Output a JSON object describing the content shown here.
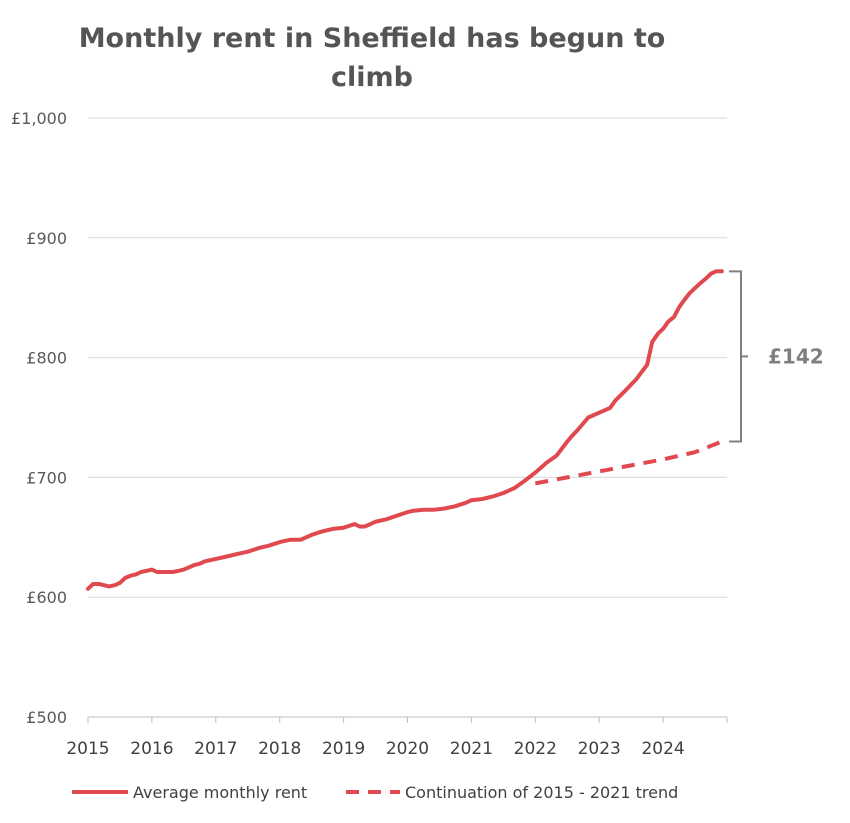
{
  "chart_data": {
    "type": "line",
    "title_lines": [
      "Monthly rent in Sheffield has begun to",
      "climb"
    ],
    "xlabel": "",
    "ylabel": "",
    "xlim": [
      2015,
      2025
    ],
    "ylim": [
      500,
      1000
    ],
    "y_ticks": [
      {
        "value": 500,
        "label": "£500"
      },
      {
        "value": 600,
        "label": "£600"
      },
      {
        "value": 700,
        "label": "£700"
      },
      {
        "value": 800,
        "label": "£800"
      },
      {
        "value": 900,
        "label": "£900"
      },
      {
        "value": 1000,
        "label": "£1,000"
      }
    ],
    "x_ticks": [
      {
        "value": 2015,
        "label": "2015"
      },
      {
        "value": 2016,
        "label": "2016"
      },
      {
        "value": 2017,
        "label": "2017"
      },
      {
        "value": 2018,
        "label": "2018"
      },
      {
        "value": 2019,
        "label": "2019"
      },
      {
        "value": 2020,
        "label": "2020"
      },
      {
        "value": 2021,
        "label": "2021"
      },
      {
        "value": 2022,
        "label": "2022"
      },
      {
        "value": 2023,
        "label": "2023"
      },
      {
        "value": 2024,
        "label": "2024"
      }
    ],
    "grid": true,
    "legend_position": "bottom",
    "colors": {
      "series": "#e04a4f",
      "grid": "#d9d9d9",
      "axis": "#bfbfbf",
      "annotation": "#7f7f7f"
    },
    "series": [
      {
        "name": "Average monthly rent",
        "style": "solid",
        "x": [
          2015.0,
          2015.08,
          2015.17,
          2015.25,
          2015.33,
          2015.42,
          2015.5,
          2015.58,
          2015.67,
          2015.75,
          2015.83,
          2015.92,
          2016.0,
          2016.08,
          2016.17,
          2016.25,
          2016.33,
          2016.42,
          2016.5,
          2016.58,
          2016.67,
          2016.75,
          2016.83,
          2016.92,
          2017.0,
          2017.17,
          2017.33,
          2017.5,
          2017.67,
          2017.83,
          2018.0,
          2018.17,
          2018.33,
          2018.5,
          2018.67,
          2018.83,
          2019.0,
          2019.17,
          2019.25,
          2019.33,
          2019.42,
          2019.5,
          2019.67,
          2019.83,
          2020.0,
          2020.08,
          2020.25,
          2020.42,
          2020.58,
          2020.75,
          2020.92,
          2021.0,
          2021.17,
          2021.33,
          2021.5,
          2021.67,
          2021.83,
          2022.0,
          2022.17,
          2022.33,
          2022.5,
          2022.58,
          2022.67,
          2022.83,
          2023.0,
          2023.17,
          2023.25,
          2023.42,
          2023.58,
          2023.75,
          2023.83,
          2023.92,
          2024.0,
          2024.08,
          2024.17,
          2024.25,
          2024.33,
          2024.42,
          2024.5,
          2024.58,
          2024.67,
          2024.75,
          2024.83,
          2024.92
        ],
        "values": [
          607,
          611,
          611,
          610,
          609,
          610,
          612,
          616,
          618,
          619,
          621,
          622,
          623,
          621,
          621,
          621,
          621,
          622,
          623,
          625,
          627,
          628,
          630,
          631,
          632,
          634,
          636,
          638,
          641,
          643,
          646,
          648,
          648,
          652,
          655,
          657,
          658,
          661,
          659,
          659,
          661,
          663,
          665,
          668,
          671,
          672,
          673,
          673,
          674,
          676,
          679,
          681,
          682,
          684,
          687,
          691,
          697,
          704,
          712,
          718,
          730,
          735,
          740,
          750,
          754,
          758,
          764,
          773,
          782,
          794,
          813,
          820,
          824,
          830,
          834,
          842,
          848,
          854,
          858,
          862,
          866,
          870,
          872,
          872
        ]
      },
      {
        "name": "Continuation of 2015 - 2021 trend",
        "style": "dashed",
        "x": [
          2022.0,
          2022.5,
          2023.0,
          2023.5,
          2024.0,
          2024.5,
          2024.92
        ],
        "values": [
          695,
          700,
          705,
          710,
          715,
          721,
          730
        ]
      }
    ],
    "annotations": [
      {
        "type": "bracket",
        "x": 2024.92,
        "y_from": 730,
        "y_to": 872,
        "label": "£142"
      }
    ]
  }
}
